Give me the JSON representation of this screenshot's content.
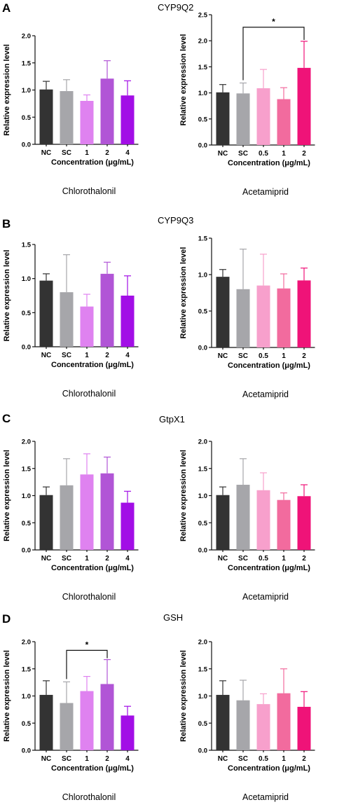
{
  "figure": {
    "panels": [
      {
        "letter": "A",
        "gene": "CYP9Q2"
      },
      {
        "letter": "B",
        "gene": "CYP9Q3"
      },
      {
        "letter": "C",
        "gene": "GtpX1"
      },
      {
        "letter": "D",
        "gene": "GSH"
      }
    ]
  },
  "colors": {
    "NC": "#333333",
    "SC": "#a6a6aa",
    "chloro": [
      "#df82f0",
      "#b155d6",
      "#a20ee6"
    ],
    "acet": [
      "#f7a0cc",
      "#f26b9e",
      "#ef1378"
    ]
  },
  "chart_data": [
    {
      "panel": "A",
      "gene": "CYP9Q2",
      "type": "bar",
      "chemical": "Chlorothalonil",
      "xlabel": "Concentration (μg/mL)",
      "ylabel": "Relative expression level",
      "categories": [
        "NC",
        "SC",
        "1",
        "2",
        "4"
      ],
      "values": [
        1.01,
        0.98,
        0.8,
        1.21,
        0.9
      ],
      "errors": [
        0.15,
        0.21,
        0.11,
        0.33,
        0.27
      ],
      "ylim": [
        0,
        2.0
      ],
      "yticks": [
        "0.0",
        "0.5",
        "1.0",
        "1.5",
        "2.0"
      ],
      "significance": []
    },
    {
      "panel": "A",
      "gene": "CYP9Q2",
      "type": "bar",
      "chemical": "Acetamiprid",
      "xlabel": "Concentration (μg/mL)",
      "ylabel": "Relative expression level",
      "categories": [
        "NC",
        "SC",
        "0.5",
        "1",
        "2"
      ],
      "values": [
        1.01,
        0.99,
        1.09,
        0.88,
        1.48
      ],
      "errors": [
        0.15,
        0.2,
        0.36,
        0.22,
        0.51
      ],
      "ylim": [
        0,
        2.5
      ],
      "yticks": [
        "0.0",
        "0.5",
        "1.0",
        "1.5",
        "2.0",
        "2.5"
      ],
      "significance": [
        {
          "from": "SC",
          "to": "2",
          "label": "*",
          "at": 2.26
        }
      ]
    },
    {
      "panel": "B",
      "gene": "CYP9Q3",
      "type": "bar",
      "chemical": "Chlorothalonil",
      "xlabel": "Concentration (μg/mL)",
      "ylabel": "Relative expression level",
      "categories": [
        "NC",
        "SC",
        "1",
        "2",
        "4"
      ],
      "values": [
        0.97,
        0.8,
        0.59,
        1.07,
        0.75
      ],
      "errors": [
        0.1,
        0.55,
        0.18,
        0.17,
        0.29
      ],
      "ylim": [
        0,
        1.5
      ],
      "yticks": [
        "0.0",
        "0.5",
        "1.0",
        "1.5"
      ],
      "significance": []
    },
    {
      "panel": "B",
      "gene": "CYP9Q3",
      "type": "bar",
      "chemical": "Acetamiprid",
      "xlabel": "Concentration (μg/mL)",
      "ylabel": "Relative expression level",
      "categories": [
        "NC",
        "SC",
        "0.5",
        "1",
        "2"
      ],
      "values": [
        0.97,
        0.8,
        0.85,
        0.81,
        0.92
      ],
      "errors": [
        0.1,
        0.55,
        0.43,
        0.2,
        0.17
      ],
      "ylim": [
        0,
        1.5
      ],
      "yticks": [
        "0.0",
        "0.5",
        "1.0",
        "1.5"
      ],
      "significance": []
    },
    {
      "panel": "C",
      "gene": "GtpX1",
      "type": "bar",
      "chemical": "Chlorothalonil",
      "xlabel": "Concentration (μg/mL)",
      "ylabel": "Relative expression level",
      "categories": [
        "NC",
        "SC",
        "1",
        "2",
        "4"
      ],
      "values": [
        1.01,
        1.19,
        1.39,
        1.41,
        0.87
      ],
      "errors": [
        0.15,
        0.49,
        0.38,
        0.3,
        0.21
      ],
      "ylim": [
        0,
        2.0
      ],
      "yticks": [
        "0.0",
        "0.5",
        "1.0",
        "1.5",
        "2.0"
      ],
      "significance": []
    },
    {
      "panel": "C",
      "gene": "GtpX1",
      "type": "bar",
      "chemical": "Acetamiprid",
      "xlabel": "Concentration (μg/mL)",
      "ylabel": "Relative expression level",
      "categories": [
        "NC",
        "SC",
        "0.5",
        "1",
        "2"
      ],
      "values": [
        1.01,
        1.2,
        1.1,
        0.92,
        0.99
      ],
      "errors": [
        0.15,
        0.48,
        0.32,
        0.13,
        0.21
      ],
      "ylim": [
        0,
        2.0
      ],
      "yticks": [
        "0.0",
        "0.5",
        "1.0",
        "1.5",
        "2.0"
      ],
      "significance": []
    },
    {
      "panel": "D",
      "gene": "GSH",
      "type": "bar",
      "chemical": "Chlorothalonil",
      "xlabel": "Concentration (μg/mL)",
      "ylabel": "Relative expression level",
      "categories": [
        "NC",
        "SC",
        "1",
        "2",
        "4"
      ],
      "values": [
        1.02,
        0.87,
        1.09,
        1.22,
        0.64
      ],
      "errors": [
        0.26,
        0.39,
        0.27,
        0.45,
        0.17
      ],
      "ylim": [
        0,
        2.0
      ],
      "yticks": [
        "0.0",
        "0.5",
        "1.0",
        "1.5",
        "2.0"
      ],
      "significance": [
        {
          "from": "SC",
          "to": "2",
          "label": "*",
          "at": 1.84
        }
      ]
    },
    {
      "panel": "D",
      "gene": "GSH",
      "type": "bar",
      "chemical": "Acetamiprid",
      "xlabel": "Concentration (μg/mL)",
      "ylabel": "Relative expression level",
      "categories": [
        "NC",
        "SC",
        "0.5",
        "1",
        "2"
      ],
      "values": [
        1.02,
        0.92,
        0.85,
        1.05,
        0.8
      ],
      "errors": [
        0.26,
        0.37,
        0.19,
        0.45,
        0.28
      ],
      "ylim": [
        0,
        2.0
      ],
      "yticks": [
        "0.0",
        "0.5",
        "1.0",
        "1.5",
        "2.0"
      ],
      "significance": []
    }
  ]
}
